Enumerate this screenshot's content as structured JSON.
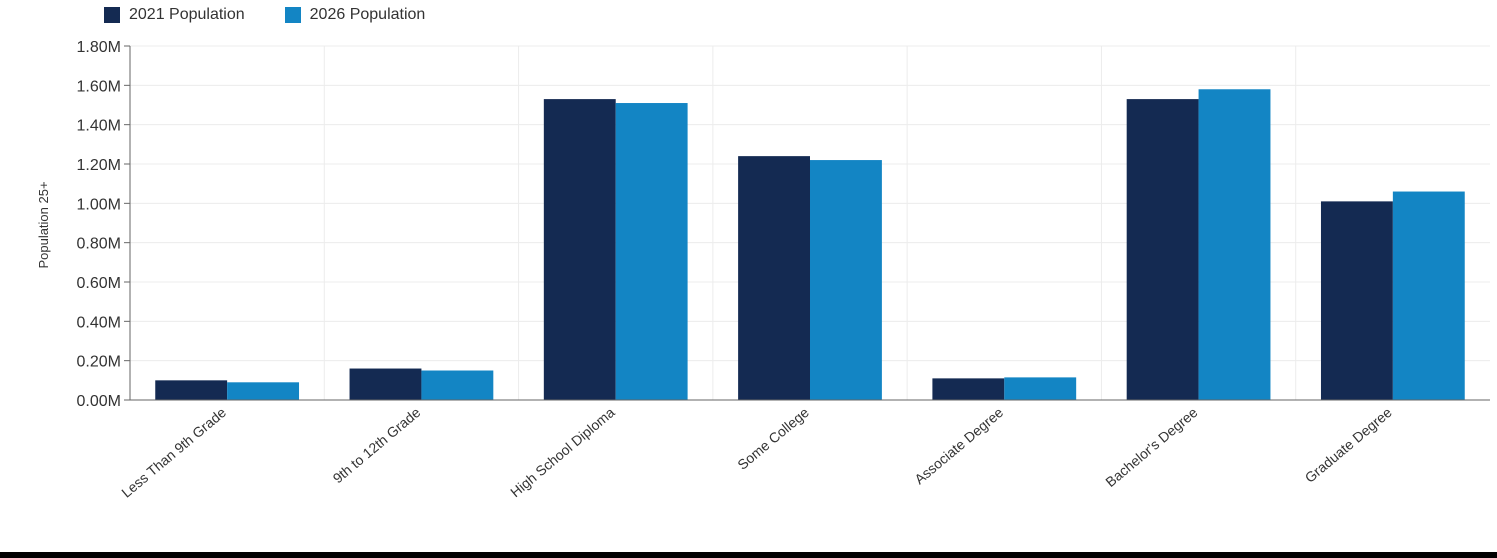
{
  "chart_data": {
    "type": "bar",
    "ylabel": "Population 25+",
    "y_ticks": [
      "1.80M",
      "1.60M",
      "1.40M",
      "1.20M",
      "1.00M",
      "0.80M",
      "0.60M",
      "0.40M",
      "0.20M",
      "0.00M"
    ],
    "ylim": [
      0,
      1800000
    ],
    "grid": true,
    "legend_position": "top-left",
    "categories": [
      "Less Than 9th Grade",
      "9th to 12th Grade",
      "High School Diploma",
      "Some College",
      "Associate Degree",
      "Bachelor's Degree",
      "Graduate Degree"
    ],
    "series": [
      {
        "name": "2021 Population",
        "color": "#142a52",
        "values": [
          100000,
          160000,
          1530000,
          1240000,
          110000,
          1530000,
          1010000
        ]
      },
      {
        "name": "2026 Population",
        "color": "#1385c4",
        "values": [
          90000,
          150000,
          1510000,
          1220000,
          115000,
          1580000,
          1060000
        ]
      }
    ]
  }
}
